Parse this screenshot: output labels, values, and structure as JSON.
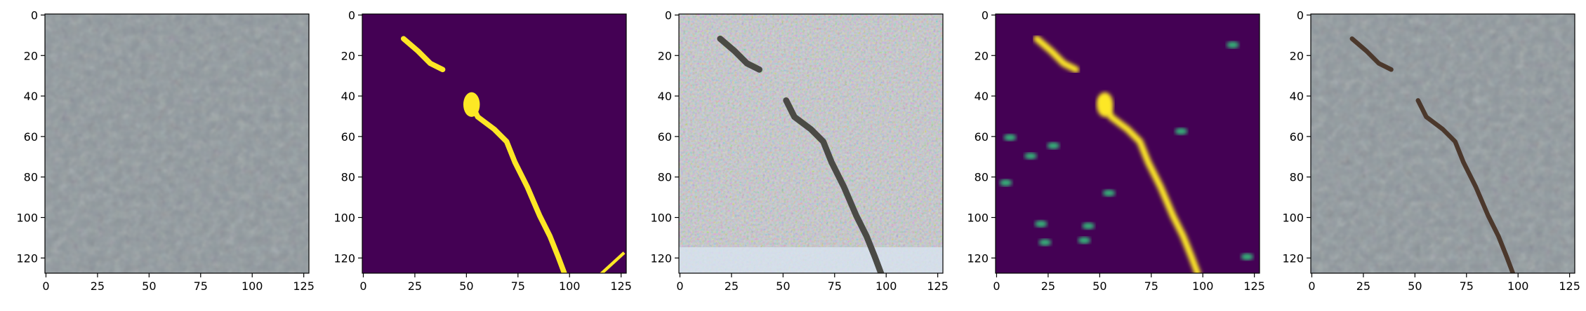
{
  "chart_data": [
    {
      "type": "image",
      "xlim": [
        -0.5,
        127.5
      ],
      "ylim": [
        127.5,
        -0.5
      ],
      "xticks": [
        0,
        25,
        50,
        75,
        100,
        125
      ],
      "yticks": [
        0,
        20,
        40,
        60,
        80,
        100,
        120
      ]
    },
    {
      "type": "image",
      "xlim": [
        -0.5,
        127.5
      ],
      "ylim": [
        127.5,
        -0.5
      ],
      "xticks": [
        0,
        25,
        50,
        75,
        100,
        125
      ],
      "yticks": [
        0,
        20,
        40,
        60,
        80,
        100,
        120
      ]
    },
    {
      "type": "image",
      "xlim": [
        -0.5,
        127.5
      ],
      "ylim": [
        127.5,
        -0.5
      ],
      "xticks": [
        0,
        25,
        50,
        75,
        100,
        125
      ],
      "yticks": [
        0,
        20,
        40,
        60,
        80,
        100,
        120
      ]
    },
    {
      "type": "image",
      "xlim": [
        -0.5,
        127.5
      ],
      "ylim": [
        127.5,
        -0.5
      ],
      "xticks": [
        0,
        25,
        50,
        75,
        100,
        125
      ],
      "yticks": [
        0,
        20,
        40,
        60,
        80,
        100,
        120
      ]
    },
    {
      "type": "image",
      "xlim": [
        -0.5,
        127.5
      ],
      "ylim": [
        127.5,
        -0.5
      ],
      "xticks": [
        0,
        25,
        50,
        75,
        100,
        125
      ],
      "yticks": [
        0,
        20,
        40,
        60,
        80,
        100,
        120
      ]
    }
  ]
}
